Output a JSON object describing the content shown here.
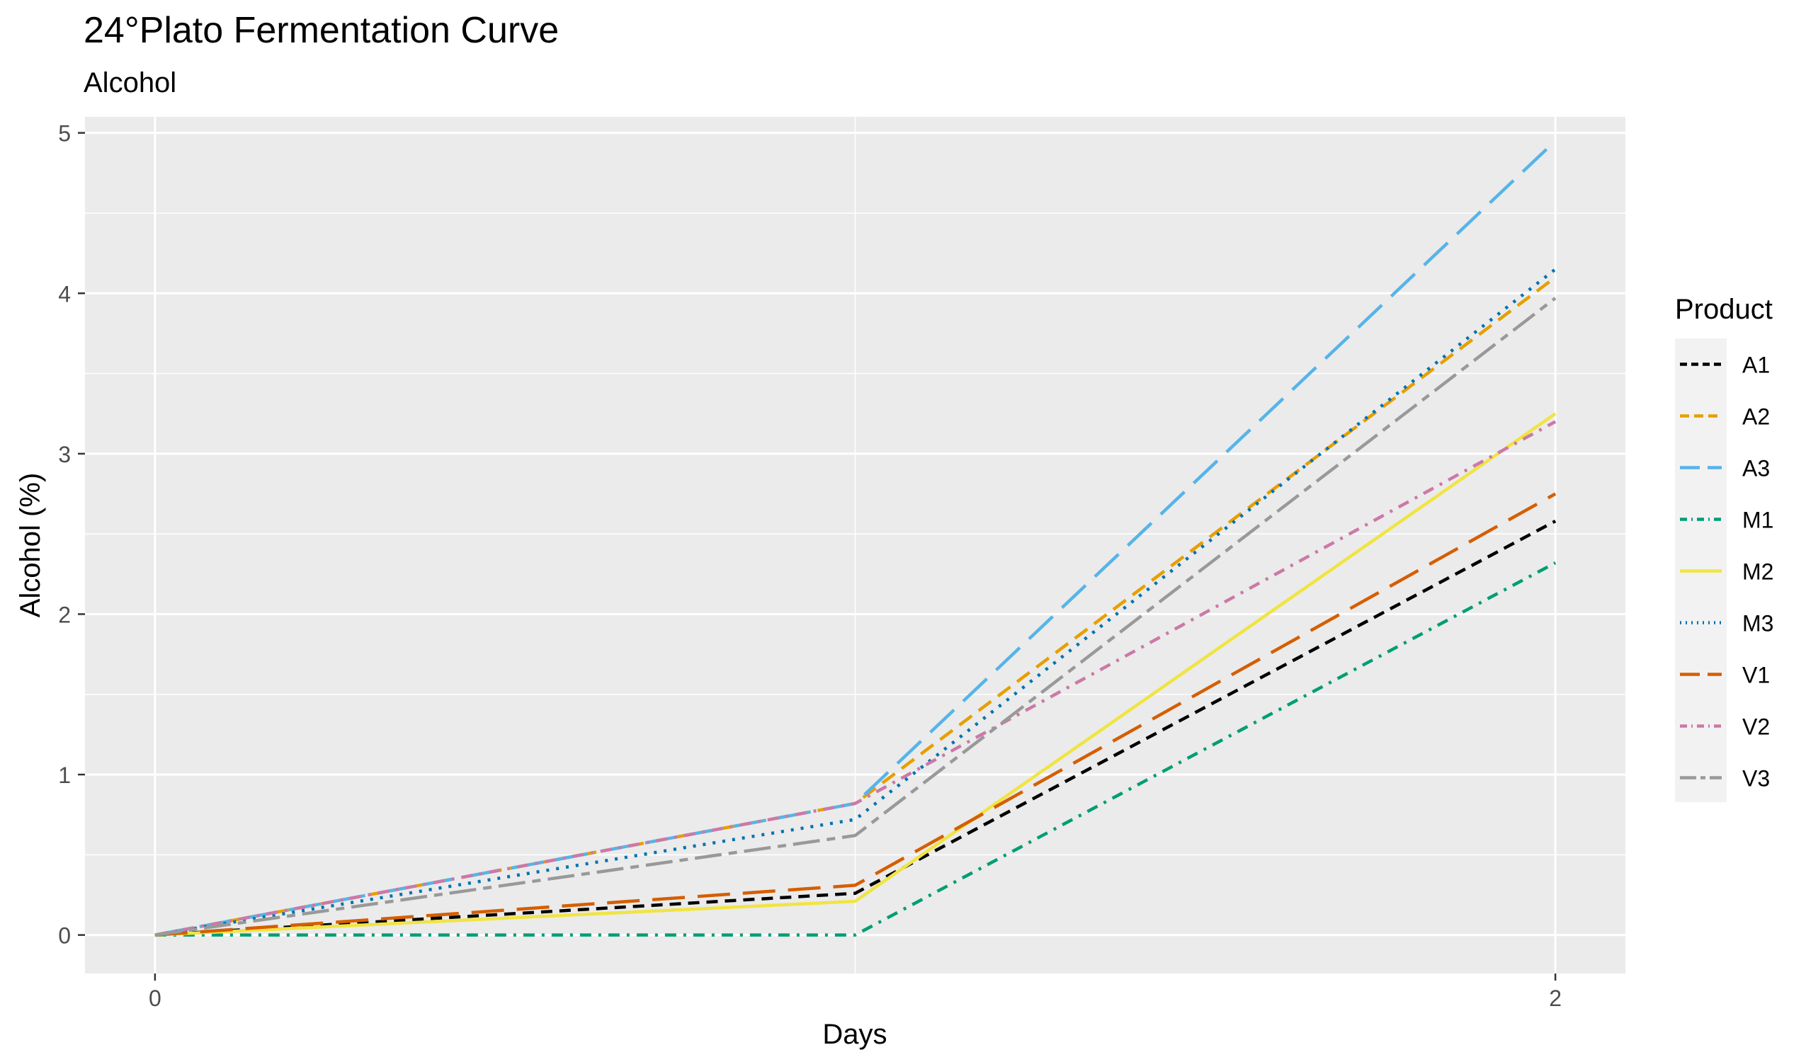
{
  "chart_data": {
    "type": "line",
    "title": "24°Plato Fermentation Curve",
    "subtitle": "Alcohol",
    "xlabel": "Days",
    "ylabel": "Alcohol (%)",
    "x": [
      0,
      1,
      2
    ],
    "x_ticks": [
      0,
      2
    ],
    "x_tick_labels": [
      "0",
      "2"
    ],
    "xlim": [
      -0.1,
      2.1
    ],
    "y_ticks": [
      0,
      1,
      2,
      3,
      4,
      5
    ],
    "y_tick_labels": [
      "0",
      "1",
      "2",
      "3",
      "4",
      "5"
    ],
    "ylim": [
      -0.24,
      5.1
    ],
    "grid": true,
    "legend": {
      "title": "Product",
      "position": "right"
    },
    "series": [
      {
        "name": "A1",
        "values": [
          0,
          0.26,
          2.58
        ],
        "color": "#000000",
        "dash": "short-dash"
      },
      {
        "name": "A2",
        "values": [
          0,
          0.82,
          4.1
        ],
        "color": "#E69F00",
        "dash": "dash"
      },
      {
        "name": "A3",
        "values": [
          0,
          0.82,
          4.95
        ],
        "color": "#56B4E9",
        "dash": "long-dash"
      },
      {
        "name": "M1",
        "values": [
          0,
          0.0,
          2.32
        ],
        "color": "#009E73",
        "dash": "dash-dot"
      },
      {
        "name": "M2",
        "values": [
          0,
          0.21,
          3.25
        ],
        "color": "#F0E442",
        "dash": "solid"
      },
      {
        "name": "M3",
        "values": [
          0,
          0.72,
          4.15
        ],
        "color": "#0072B2",
        "dash": "dotted"
      },
      {
        "name": "V1",
        "values": [
          0,
          0.31,
          2.75
        ],
        "color": "#D55E00",
        "dash": "long-dash"
      },
      {
        "name": "V2",
        "values": [
          0,
          0.82,
          3.2
        ],
        "color": "#CC79A7",
        "dash": "dash-dot"
      },
      {
        "name": "V3",
        "values": [
          0,
          0.62,
          3.97
        ],
        "color": "#999999",
        "dash": "two-dash"
      }
    ]
  }
}
